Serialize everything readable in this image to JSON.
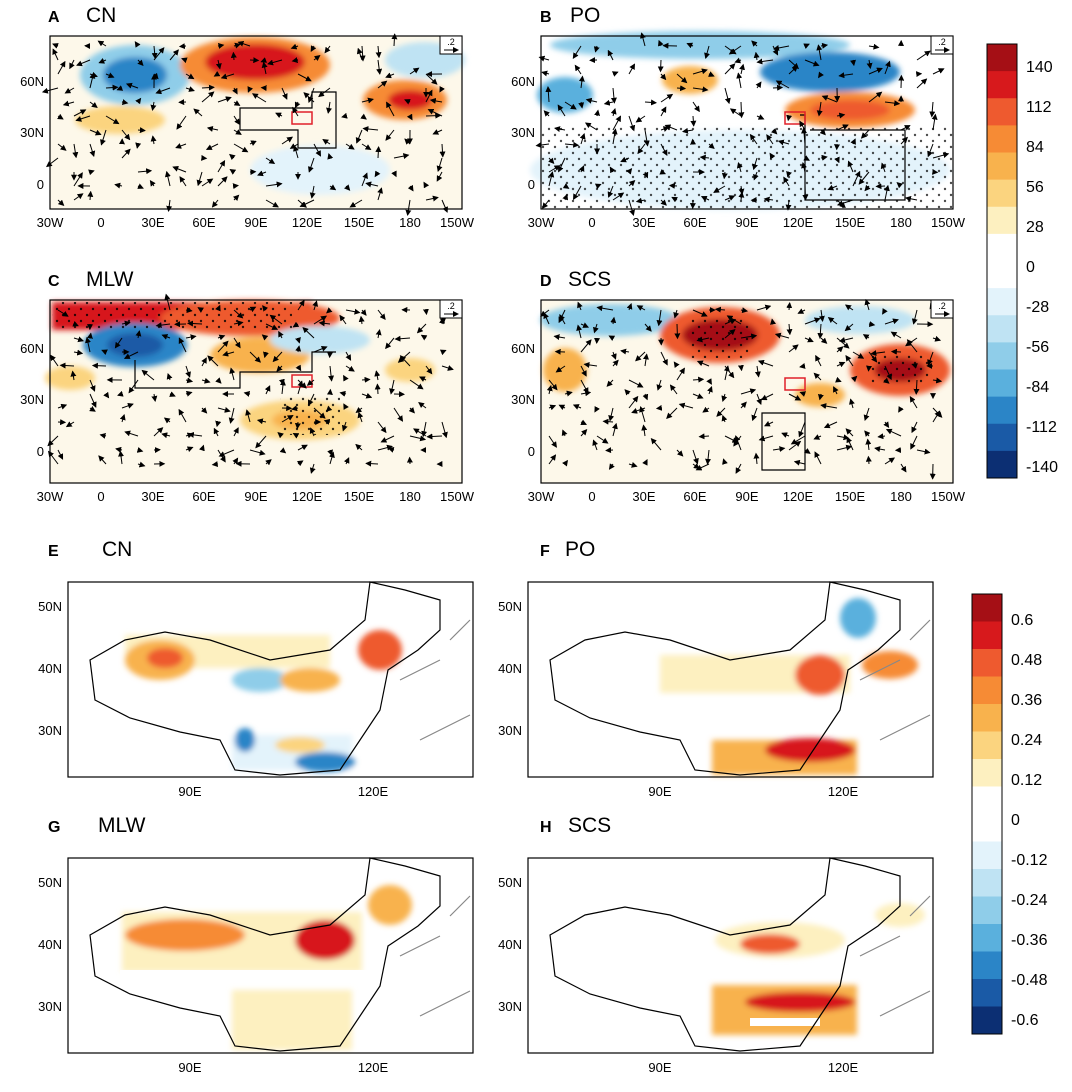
{
  "top_panels": [
    {
      "letter": "A",
      "title": "CN",
      "vector_ref": ".2"
    },
    {
      "letter": "B",
      "title": "PO",
      "vector_ref": ".2"
    },
    {
      "letter": "C",
      "title": "MLW",
      "vector_ref": ".2"
    },
    {
      "letter": "D",
      "title": "SCS",
      "vector_ref": ".2"
    }
  ],
  "bottom_panels": [
    {
      "letter": "E",
      "title": "CN"
    },
    {
      "letter": "F",
      "title": "PO"
    },
    {
      "letter": "G",
      "title": "MLW"
    },
    {
      "letter": "H",
      "title": "SCS"
    }
  ],
  "top_axes": {
    "x_ticks": [
      "30W",
      "0",
      "30E",
      "60E",
      "90E",
      "120E",
      "150E",
      "180",
      "150W"
    ],
    "y_ticks": [
      "60N",
      "30N",
      "0"
    ]
  },
  "bottom_axes": {
    "x_ticks": [
      "90E",
      "120E"
    ],
    "y_ticks": [
      "50N",
      "40N",
      "30N"
    ]
  },
  "colorbar_top": {
    "labels": [
      "140",
      "112",
      "84",
      "56",
      "28",
      "0",
      "-28",
      "-56",
      "-84",
      "-112",
      "-140"
    ],
    "colors": [
      "#a50f15",
      "#d7191c",
      "#ee5a2f",
      "#f68b35",
      "#f8b24d",
      "#fbd47f",
      "#fdf0c0",
      "#ffffff",
      "#ffffff",
      "#e3f3fb",
      "#bfe3f3",
      "#8fcde9",
      "#5ab0dd",
      "#2b85c7",
      "#1a5aa6",
      "#0c2f73"
    ]
  },
  "colorbar_bottom": {
    "labels": [
      "0.6",
      "0.48",
      "0.36",
      "0.24",
      "0.12",
      "0",
      "-0.12",
      "-0.24",
      "-0.36",
      "-0.48",
      "-0.6"
    ],
    "colors": [
      "#a50f15",
      "#d7191c",
      "#ee5a2f",
      "#f68b35",
      "#f8b24d",
      "#fbd47f",
      "#fdf0c0",
      "#ffffff",
      "#ffffff",
      "#e3f3fb",
      "#bfe3f3",
      "#8fcde9",
      "#5ab0dd",
      "#2b85c7",
      "#1a5aa6",
      "#0c2f73"
    ]
  }
}
